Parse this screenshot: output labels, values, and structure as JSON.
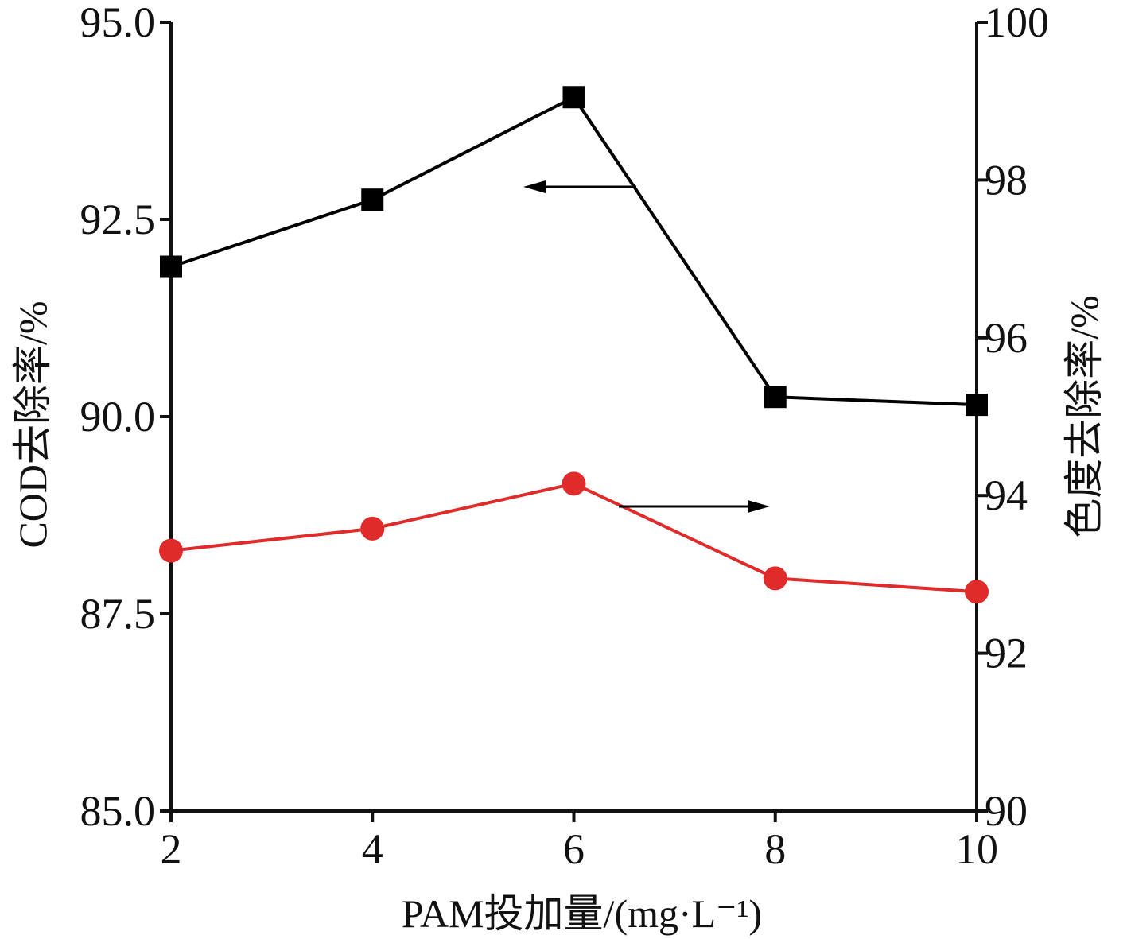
{
  "chart_data": {
    "type": "line",
    "x": [
      2,
      4,
      6,
      8,
      10
    ],
    "xlabel": "PAM投加量/(mg·L⁻¹)",
    "xlim": [
      2,
      10
    ],
    "xticks": [
      "2",
      "4",
      "6",
      "8",
      "10"
    ],
    "ylabel_left": "COD去除率/%",
    "ylim_left": [
      85.0,
      95.0
    ],
    "yticks_left": [
      "85.0",
      "87.5",
      "90.0",
      "92.5",
      "95.0"
    ],
    "ylabel_right": "色度去除率/%",
    "ylim_right": [
      90,
      100
    ],
    "yticks_right": [
      "90",
      "92",
      "94",
      "96",
      "98",
      "100"
    ],
    "grid": false,
    "series": [
      {
        "axis": "left",
        "marker": "square",
        "color": "#000000",
        "values": [
          91.9,
          92.75,
          94.05,
          90.25,
          90.15
        ],
        "arrow_direction": "left"
      },
      {
        "axis": "right",
        "marker": "circle",
        "color": "#e02b2b",
        "values": [
          93.3,
          93.58,
          94.15,
          92.95,
          92.78
        ],
        "arrow_direction": "right"
      }
    ]
  }
}
